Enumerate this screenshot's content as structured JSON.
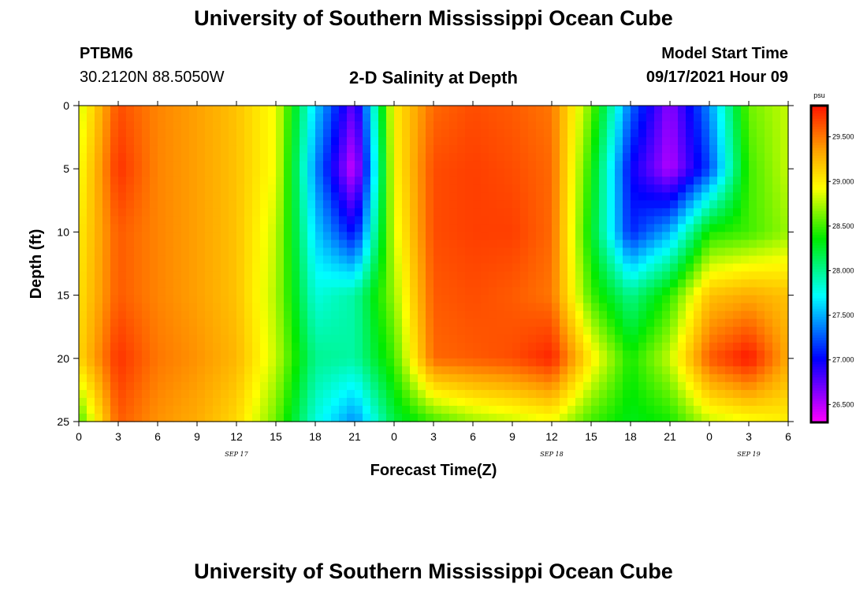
{
  "header": {
    "title": "University of Southern Mississippi Ocean Cube",
    "station": "PTBM6",
    "coords": "30.2120N  88.5050W",
    "plot_title": "2-D Salinity at Depth",
    "model_label": "Model Start Time",
    "model_time": "09/17/2021 Hour 09"
  },
  "footer": {
    "title": "University of Southern Mississippi Ocean Cube"
  },
  "chart_data": {
    "type": "heatmap",
    "title": "2-D Salinity at Depth",
    "xlabel": "Forecast Time(Z)",
    "ylabel": "Depth (ft)",
    "x_tick_labels": [
      "0",
      "3",
      "6",
      "9",
      "12",
      "15",
      "18",
      "21",
      "0",
      "3",
      "6",
      "9",
      "12",
      "15",
      "18",
      "21",
      "0",
      "3",
      "6"
    ],
    "x_range_hours": [
      0,
      54
    ],
    "date_labels": [
      {
        "label": "SEP 17",
        "hour": 12
      },
      {
        "label": "SEP 18",
        "hour": 36
      },
      {
        "label": "SEP 19",
        "hour": 51
      }
    ],
    "y_tick_labels": [
      "0",
      "5",
      "10",
      "15",
      "20",
      "25"
    ],
    "y_range_ft": [
      0,
      25
    ],
    "colorbar": {
      "unit": "psu",
      "min": 26.3,
      "max": 29.85,
      "tick_labels": [
        "29.500",
        "29.000",
        "28.500",
        "28.000",
        "27.500",
        "27.000",
        "26.500"
      ],
      "tick_values": [
        29.5,
        29.0,
        28.5,
        28.0,
        27.5,
        27.0,
        26.5
      ]
    },
    "field_summary": {
      "grid_hours": [
        0,
        3,
        6,
        9,
        12,
        15,
        18,
        21,
        24,
        27,
        30,
        33,
        36,
        39,
        42,
        45,
        48,
        51,
        54
      ],
      "grid_depths_ft": [
        0,
        5,
        10,
        15,
        20,
        25
      ],
      "salinity_psu": [
        [
          28.8,
          29.65,
          29.45,
          29.35,
          29.2,
          28.9,
          27.6,
          26.7,
          29.0,
          29.55,
          29.65,
          29.6,
          29.5,
          28.6,
          27.3,
          26.6,
          27.4,
          28.6,
          28.8
        ],
        [
          28.9,
          29.75,
          29.45,
          29.35,
          29.2,
          28.9,
          27.4,
          26.4,
          28.95,
          29.65,
          29.7,
          29.65,
          29.55,
          28.4,
          27.0,
          26.5,
          27.2,
          28.5,
          28.8
        ],
        [
          29.0,
          29.6,
          29.45,
          29.35,
          29.2,
          28.8,
          27.6,
          27.0,
          28.85,
          29.65,
          29.7,
          29.7,
          29.55,
          28.3,
          27.1,
          27.5,
          28.4,
          28.5,
          28.7
        ],
        [
          29.05,
          29.6,
          29.45,
          29.35,
          29.2,
          28.75,
          27.8,
          27.95,
          28.7,
          29.6,
          29.65,
          29.6,
          29.5,
          28.5,
          28.0,
          28.45,
          29.2,
          29.3,
          29.2
        ],
        [
          29.1,
          29.75,
          29.5,
          29.4,
          29.25,
          28.8,
          28.0,
          27.95,
          28.5,
          29.55,
          29.6,
          29.65,
          29.8,
          29.0,
          28.4,
          28.8,
          29.6,
          29.85,
          29.3
        ],
        [
          28.5,
          29.6,
          29.4,
          29.3,
          29.1,
          28.6,
          27.8,
          27.4,
          28.2,
          28.5,
          28.7,
          28.8,
          28.9,
          28.5,
          28.3,
          28.4,
          28.8,
          28.9,
          29.0
        ]
      ]
    }
  }
}
